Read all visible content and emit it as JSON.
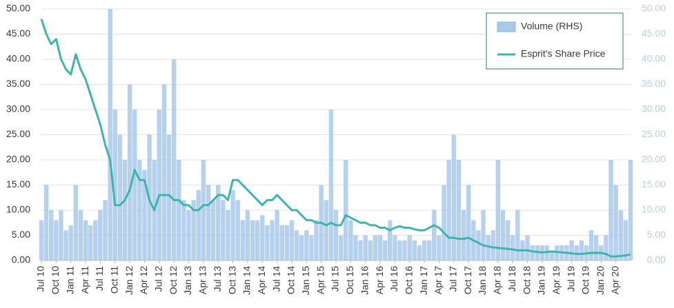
{
  "chart_data": {
    "type": "combo",
    "categories": [
      "Jul 10",
      null,
      null,
      "Oct 10",
      null,
      null,
      "Jan 11",
      null,
      null,
      "Apr 11",
      null,
      null,
      "Jul 11",
      null,
      null,
      "Oct 11",
      null,
      null,
      "Jan 12",
      null,
      null,
      "Apr 12",
      null,
      null,
      "Jul 12",
      null,
      null,
      "Oct 12",
      null,
      null,
      "Jan 13",
      null,
      null,
      "Apr 13",
      null,
      null,
      "Jul 13",
      null,
      null,
      "Oct 13",
      null,
      null,
      "Jan 14",
      null,
      null,
      "Apr 14",
      null,
      null,
      "Jul 14",
      null,
      null,
      "Oct 14",
      null,
      null,
      "Jan 15",
      null,
      null,
      "Apr 15",
      null,
      null,
      "Jul 15",
      null,
      null,
      "Oct 15",
      null,
      null,
      "Jan 16",
      null,
      null,
      "Apr 16",
      null,
      null,
      "Jul 16",
      null,
      null,
      "Oct 16",
      null,
      null,
      "Jan 17",
      null,
      null,
      "Apr 17",
      null,
      null,
      "Jul 17",
      null,
      null,
      "Oct 17",
      null,
      null,
      "Jan 18",
      null,
      null,
      "Apr 18",
      null,
      null,
      "Jul 18",
      null,
      null,
      "Oct 18",
      null,
      null,
      "Jan 19",
      null,
      null,
      "Apr 19",
      null,
      null,
      "Jul 19",
      null,
      null,
      "Oct 19",
      null,
      null,
      "Jan 20",
      null,
      null,
      "Apr 20",
      null,
      null,
      null
    ],
    "series": [
      {
        "name": "Volume (RHS)",
        "type": "bar",
        "axis": "y2",
        "color": "#a9c9ea",
        "values": [
          8,
          15,
          10,
          8,
          10,
          6,
          7,
          15,
          10,
          8,
          7,
          8,
          10,
          12,
          50,
          30,
          25,
          20,
          35,
          30,
          20,
          18,
          25,
          20,
          30,
          35,
          25,
          40,
          20,
          12,
          10,
          12,
          14,
          20,
          15,
          12,
          15,
          12,
          10,
          14,
          12,
          8,
          10,
          8,
          8,
          9,
          7,
          8,
          10,
          7,
          7,
          8,
          6,
          5,
          6,
          5,
          8,
          15,
          12,
          30,
          10,
          5,
          20,
          8,
          5,
          4,
          5,
          4,
          5,
          5,
          4,
          8,
          5,
          4,
          4,
          5,
          4,
          3,
          4,
          4,
          10,
          5,
          15,
          20,
          25,
          20,
          10,
          15,
          8,
          6,
          10,
          5,
          6,
          20,
          10,
          8,
          5,
          10,
          4,
          5,
          3,
          3,
          3,
          3,
          2,
          3,
          3,
          3,
          4,
          3,
          4,
          3,
          6,
          5,
          3,
          5,
          20,
          15,
          10,
          8,
          20
        ]
      },
      {
        "name": "Esprit's Share Price",
        "type": "line",
        "color": "#3db5ab",
        "values": [
          48,
          45,
          43,
          44,
          40,
          38,
          37,
          41,
          38,
          36,
          33,
          30,
          27,
          23,
          20,
          11,
          11,
          12,
          14,
          18,
          16,
          16,
          12,
          10,
          13,
          13,
          13,
          12,
          12,
          11,
          11,
          10,
          10,
          11,
          11,
          12,
          13,
          13,
          12,
          16,
          16,
          15,
          14,
          13,
          12,
          11,
          12,
          12,
          13,
          12,
          11,
          10,
          10,
          9,
          8,
          8,
          7.5,
          7.5,
          7,
          7.5,
          7,
          7,
          9,
          8.5,
          8,
          7.5,
          7.5,
          7,
          7,
          6.5,
          6.5,
          6,
          6.5,
          6.8,
          6.5,
          6.5,
          6.2,
          6,
          6,
          6.5,
          7,
          6.5,
          5.5,
          4.5,
          4.5,
          4.3,
          4.3,
          4.5,
          4,
          3.5,
          3,
          2.8,
          2.6,
          2.5,
          2.4,
          2.3,
          2.2,
          2,
          2,
          2,
          1.8,
          1.7,
          1.6,
          1.7,
          1.8,
          1.7,
          1.6,
          1.5,
          1.4,
          1.3,
          1.3,
          1.4,
          1.5,
          1.5,
          1.5,
          1.3,
          0.8,
          0.8,
          0.9,
          1,
          1.2
        ]
      }
    ],
    "ylim": [
      0,
      50
    ],
    "yticks": [
      {
        "value": 0,
        "label": "0.00"
      },
      {
        "value": 5,
        "label": "5.00"
      },
      {
        "value": 10,
        "label": "10.00"
      },
      {
        "value": 15,
        "label": "15.00"
      },
      {
        "value": 20,
        "label": "20.00"
      },
      {
        "value": 25,
        "label": "25.00"
      },
      {
        "value": 30,
        "label": "30.00"
      },
      {
        "value": 35,
        "label": "35.00"
      },
      {
        "value": 40,
        "label": "40.00"
      },
      {
        "value": 45,
        "label": "45.00"
      },
      {
        "value": 50,
        "label": "50.00"
      }
    ],
    "y2lim": [
      0,
      50
    ],
    "y2ticks": [
      {
        "value": 0,
        "label": "0.00"
      },
      {
        "value": 5,
        "label": "5.00"
      },
      {
        "value": 10,
        "label": "10.00"
      },
      {
        "value": 15,
        "label": "15.00"
      },
      {
        "value": 20,
        "label": "20.00"
      },
      {
        "value": 25,
        "label": "25.00"
      },
      {
        "value": 30,
        "label": "30.00"
      },
      {
        "value": 35,
        "label": "35.00"
      },
      {
        "value": 40,
        "label": "40.00"
      },
      {
        "value": 45,
        "label": "45.00"
      },
      {
        "value": 50,
        "label": "50.00"
      }
    ],
    "grid": true,
    "legend": "top-right"
  }
}
